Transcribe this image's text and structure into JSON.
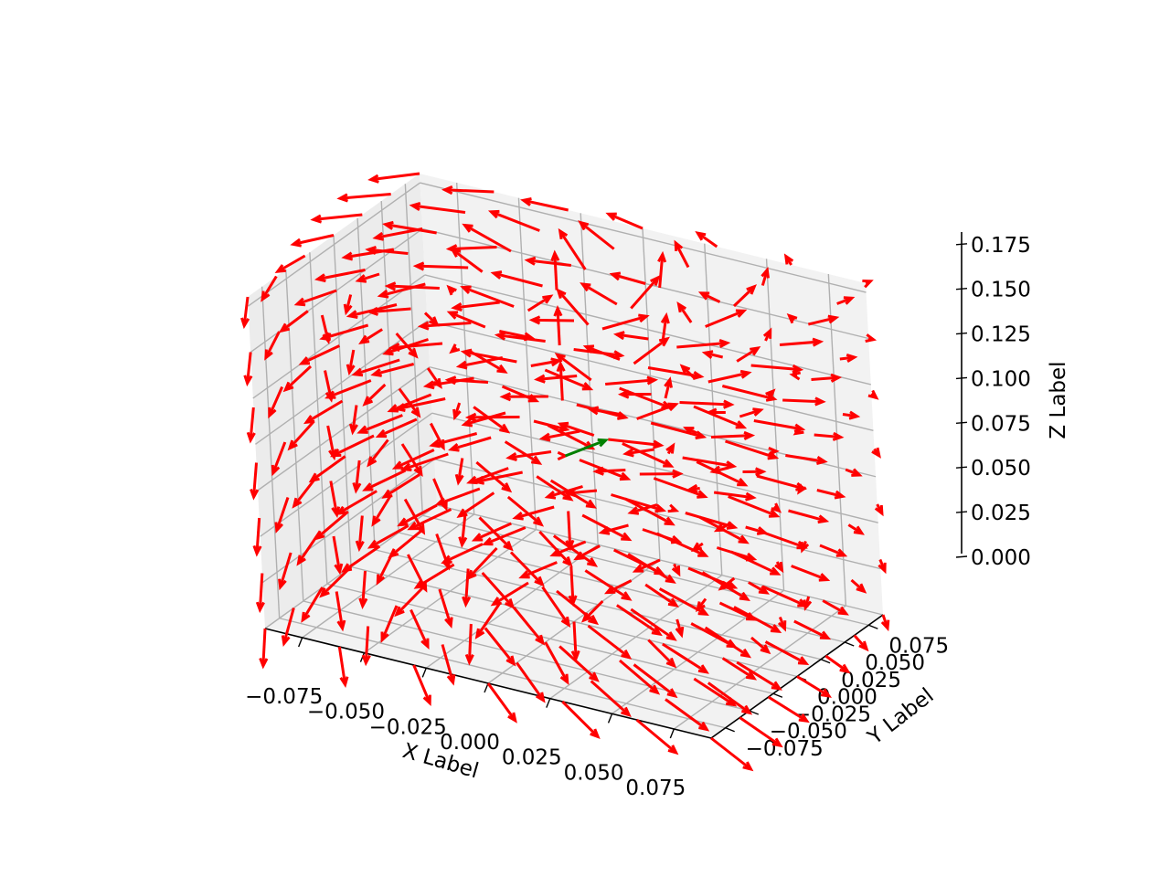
{
  "chart_data": {
    "type": "quiver3d",
    "title": "",
    "xlabel": "X Label",
    "ylabel": "Y Label",
    "zlabel": "Z Label",
    "xlim": [
      -0.09,
      0.09
    ],
    "ylim": [
      -0.09,
      0.09
    ],
    "zlim": [
      0.0,
      0.18
    ],
    "x_ticks": [
      -0.075,
      -0.05,
      -0.025,
      0.0,
      0.025,
      0.05,
      0.075
    ],
    "y_ticks": [
      -0.075,
      -0.05,
      -0.025,
      0.0,
      0.025,
      0.05,
      0.075
    ],
    "z_ticks": [
      0.0,
      0.025,
      0.05,
      0.075,
      0.1,
      0.125,
      0.15,
      0.175
    ],
    "x_tick_labels": [
      "−0.075",
      "−0.050",
      "−0.025",
      "0.000",
      "0.025",
      "0.050",
      "0.075"
    ],
    "y_tick_labels": [
      "−0.075",
      "−0.050",
      "−0.025",
      "0.000",
      "0.025",
      "0.050",
      "0.075"
    ],
    "z_tick_labels": [
      "0.000",
      "0.025",
      "0.050",
      "0.075",
      "0.100",
      "0.125",
      "0.150",
      "0.175"
    ],
    "grid": true,
    "field": {
      "description_of_sampling": "7x7x7 grid over x,y in [-0.09,0.09], z in [0,0.18]; vectors swirl around the z-axis with an outward radial component",
      "x_samples": [
        -0.09,
        -0.06,
        -0.03,
        0.0,
        0.03,
        0.06,
        0.09
      ],
      "y_samples": [
        -0.09,
        -0.06,
        -0.03,
        0.0,
        0.03,
        0.06,
        0.09
      ],
      "z_samples": [
        0.0,
        0.03,
        0.06,
        0.09,
        0.12,
        0.15,
        0.18
      ],
      "center": [
        0.0,
        0.0,
        0.09
      ],
      "arrow_length": 0.02
    },
    "series": [
      {
        "color": "#ff0000"
      },
      {
        "color": "#008000",
        "point": [
          0.0,
          0.0,
          0.09
        ],
        "vector": [
          0.0,
          0.0,
          0.02
        ]
      }
    ],
    "colors": {
      "pane": "#f2f2f2",
      "pane_side": "#ececec",
      "grid": "#b0b0b0",
      "field_arrow": "#ff0000",
      "highlight_arrow": "#008000"
    }
  }
}
